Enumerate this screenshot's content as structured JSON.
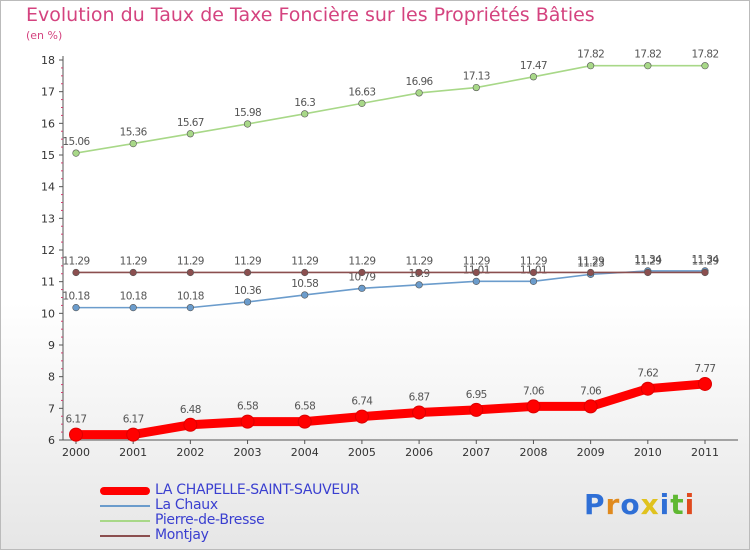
{
  "header": {
    "title": "Evolution du Taux de Taxe Foncière sur les Propriétés Bâties",
    "unit": "(en %)"
  },
  "logo": {
    "text": "Proxiti",
    "colors": [
      "#2f6fd6",
      "#e08a1e",
      "#2f6fd6",
      "#e0c21e",
      "#2f6fd6",
      "#5fb832",
      "#e04a1e"
    ]
  },
  "chart_data": {
    "type": "line",
    "title": "Evolution du Taux de Taxe Foncière sur les Propriétés Bâties",
    "ylabel": "(en %)",
    "xlabel": "",
    "ylim": [
      6,
      18
    ],
    "yticks": [
      6,
      7,
      8,
      9,
      10,
      11,
      12,
      13,
      14,
      15,
      16,
      17,
      18
    ],
    "x": [
      "2000",
      "2001",
      "2002",
      "2003",
      "2004",
      "2005",
      "2006",
      "2007",
      "2008",
      "2009",
      "2010",
      "2011"
    ],
    "legend_position": "bottom-left",
    "series": [
      {
        "name": "LA CHAPELLE-SAINT-SAUVEUR",
        "color": "#ff0000",
        "values": [
          6.17,
          6.17,
          6.48,
          6.58,
          6.58,
          6.74,
          6.87,
          6.95,
          7.06,
          7.06,
          7.62,
          7.77
        ],
        "labels": [
          "6.17",
          "6.17",
          "6.48",
          "6.58",
          "6.58",
          "6.74",
          "6.87",
          "6.95",
          "7.06",
          "7.06",
          "7.62",
          "7.77"
        ]
      },
      {
        "name": "La Chaux",
        "color": "#6b9ccc",
        "values": [
          10.18,
          10.18,
          10.18,
          10.36,
          10.58,
          10.79,
          10.9,
          11.01,
          11.01,
          11.23,
          11.34,
          11.34
        ],
        "labels": [
          "10.18",
          "10.18",
          "10.18",
          "10.36",
          "10.58",
          "10.79",
          "10.9",
          "11.01",
          "11.01",
          "11.23",
          "11.34",
          "11.34"
        ]
      },
      {
        "name": "Pierre-de-Bresse",
        "color": "#a8d888",
        "values": [
          15.06,
          15.36,
          15.67,
          15.98,
          16.3,
          16.63,
          16.96,
          17.13,
          17.47,
          17.82,
          17.82,
          17.82
        ],
        "labels": [
          "15.06",
          "15.36",
          "15.67",
          "15.98",
          "16.3",
          "16.63",
          "16.96",
          "17.13",
          "17.47",
          "17.82",
          "17.82",
          "17.82"
        ]
      },
      {
        "name": "Montjay",
        "color": "#8b4f4f",
        "values": [
          11.29,
          11.29,
          11.29,
          11.29,
          11.29,
          11.29,
          11.29,
          11.29,
          11.29,
          11.29,
          11.29,
          11.29
        ],
        "labels": [
          "11.29",
          "11.29",
          "11.29",
          "11.29",
          "11.29",
          "11.29",
          "11.29",
          "11.29",
          "11.29",
          "11.29",
          "11.29",
          "11.29"
        ]
      }
    ]
  }
}
